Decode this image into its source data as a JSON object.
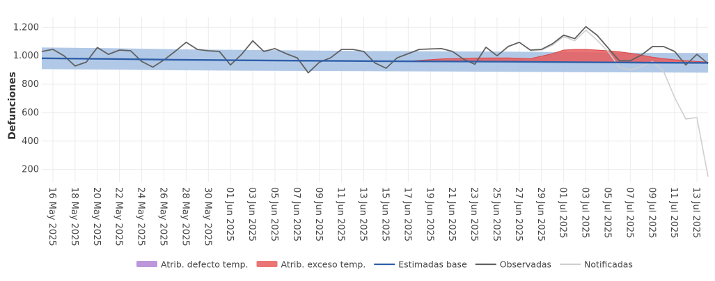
{
  "chart_data": {
    "type": "line",
    "ylabel": "Defunciones",
    "ylim": [
      110,
      1270
    ],
    "yticks": [
      200,
      400,
      600,
      800,
      1000,
      1200
    ],
    "ytick_labels": [
      "200",
      "400",
      "600",
      "800",
      "1.000",
      "1.200"
    ],
    "x_start": "2025-05-15",
    "x_end": "2025-07-14",
    "xticks": [
      "2025-05-16",
      "2025-05-18",
      "2025-05-20",
      "2025-05-22",
      "2025-05-24",
      "2025-05-26",
      "2025-05-28",
      "2025-05-30",
      "2025-06-01",
      "2025-06-03",
      "2025-06-05",
      "2025-06-07",
      "2025-06-09",
      "2025-06-11",
      "2025-06-13",
      "2025-06-15",
      "2025-06-17",
      "2025-06-19",
      "2025-06-21",
      "2025-06-23",
      "2025-06-25",
      "2025-06-27",
      "2025-06-29",
      "2025-07-01",
      "2025-07-03",
      "2025-07-05",
      "2025-07-07",
      "2025-07-09",
      "2025-07-11",
      "2025-07-13"
    ],
    "xtick_labels": [
      "16 May 2025",
      "18 May 2025",
      "20 May 2025",
      "22 May 2025",
      "24 May 2025",
      "26 May 2025",
      "28 May 2025",
      "30 May 2025",
      "01 Jun 2025",
      "03 Jun 2025",
      "05 Jun 2025",
      "07 Jun 2025",
      "09 Jun 2025",
      "11 Jun 2025",
      "13 Jun 2025",
      "15 Jun 2025",
      "17 Jun 2025",
      "19 Jun 2025",
      "21 Jun 2025",
      "23 Jun 2025",
      "25 Jun 2025",
      "27 Jun 2025",
      "29 Jun 2025",
      "01 Jul 2025",
      "03 Jul 2025",
      "05 Jul 2025",
      "07 Jul 2025",
      "09 Jul 2025",
      "11 Jul 2025",
      "13 Jul 2025"
    ],
    "grid": true,
    "legend_position": "bottom",
    "series": [
      {
        "name": "Atrib. defecto temp.",
        "kind": "area",
        "color": "#b085d6",
        "values": []
      },
      {
        "name": "Atrib. exceso temp.",
        "kind": "area",
        "color": "#e85c5c",
        "x": [
          "2025-06-17",
          "2025-06-20",
          "2025-06-23",
          "2025-06-26",
          "2025-06-28",
          "2025-06-30",
          "2025-07-01",
          "2025-07-02",
          "2025-07-03",
          "2025-07-04",
          "2025-07-05",
          "2025-07-06",
          "2025-07-07",
          "2025-07-08",
          "2025-07-09",
          "2025-07-10",
          "2025-07-11",
          "2025-07-12",
          "2025-07-13",
          "2025-07-14"
        ],
        "values": [
          962,
          978,
          984,
          985,
          980,
          1015,
          1040,
          1045,
          1045,
          1040,
          1035,
          1028,
          1018,
          1005,
          990,
          980,
          972,
          966,
          960,
          955
        ]
      },
      {
        "name": "Estimadas base",
        "kind": "line",
        "color": "#2e5ea8",
        "x": [
          "2025-05-15",
          "2025-05-21",
          "2025-05-27",
          "2025-06-02",
          "2025-06-08",
          "2025-06-14",
          "2025-06-20",
          "2025-06-26",
          "2025-07-02",
          "2025-07-08",
          "2025-07-14"
        ],
        "values": [
          982,
          978,
          972,
          968,
          965,
          962,
          960,
          958,
          955,
          952,
          950
        ],
        "band_lower": [
          906,
          903,
          898,
          895,
          893,
          891,
          889,
          887,
          885,
          883,
          881
        ],
        "band_upper": [
          1058,
          1053,
          1046,
          1041,
          1037,
          1033,
          1031,
          1029,
          1025,
          1021,
          1019
        ],
        "band_color": "#a9c3e4"
      },
      {
        "name": "Observadas",
        "kind": "line",
        "color": "#616161",
        "x": [
          "2025-05-15",
          "2025-05-16",
          "2025-05-17",
          "2025-05-18",
          "2025-05-19",
          "2025-05-20",
          "2025-05-21",
          "2025-05-22",
          "2025-05-23",
          "2025-05-24",
          "2025-05-25",
          "2025-05-26",
          "2025-05-27",
          "2025-05-28",
          "2025-05-29",
          "2025-05-30",
          "2025-05-31",
          "2025-06-01",
          "2025-06-02",
          "2025-06-03",
          "2025-06-04",
          "2025-06-05",
          "2025-06-06",
          "2025-06-07",
          "2025-06-08",
          "2025-06-09",
          "2025-06-10",
          "2025-06-11",
          "2025-06-12",
          "2025-06-13",
          "2025-06-14",
          "2025-06-15",
          "2025-06-16",
          "2025-06-17",
          "2025-06-18",
          "2025-06-19",
          "2025-06-20",
          "2025-06-21",
          "2025-06-22",
          "2025-06-23",
          "2025-06-24",
          "2025-06-25",
          "2025-06-26",
          "2025-06-27",
          "2025-06-28",
          "2025-06-29",
          "2025-06-30",
          "2025-07-01",
          "2025-07-02",
          "2025-07-03",
          "2025-07-04",
          "2025-07-05",
          "2025-07-06",
          "2025-07-07",
          "2025-07-08",
          "2025-07-09",
          "2025-07-10",
          "2025-07-11",
          "2025-07-12",
          "2025-07-13",
          "2025-07-14"
        ],
        "values": [
          1030,
          1045,
          1000,
          928,
          955,
          1058,
          1010,
          1040,
          1035,
          960,
          920,
          970,
          1030,
          1095,
          1045,
          1035,
          1030,
          935,
          1010,
          1105,
          1030,
          1050,
          1015,
          985,
          880,
          955,
          985,
          1045,
          1045,
          1030,
          950,
          912,
          985,
          1015,
          1045,
          1048,
          1050,
          1030,
          975,
          940,
          1060,
          1000,
          1065,
          1095,
          1040,
          1045,
          1085,
          1145,
          1120,
          1205,
          1145,
          1055,
          965,
          965,
          1005,
          1065,
          1065,
          1030,
          935,
          1010,
          945
        ]
      },
      {
        "name": "Notificadas",
        "kind": "line",
        "color": "#cfcfcf",
        "x": [
          "2025-06-28",
          "2025-06-29",
          "2025-06-30",
          "2025-07-01",
          "2025-07-02",
          "2025-07-03",
          "2025-07-04",
          "2025-07-05",
          "2025-07-06",
          "2025-07-07",
          "2025-07-08",
          "2025-07-09",
          "2025-07-10",
          "2025-07-11",
          "2025-07-12",
          "2025-07-13",
          "2025-07-14"
        ],
        "values": [
          1035,
          1040,
          1075,
          1135,
          1105,
          1180,
          1110,
          1030,
          920,
          900,
          925,
          960,
          890,
          705,
          555,
          565,
          150
        ]
      }
    ]
  }
}
